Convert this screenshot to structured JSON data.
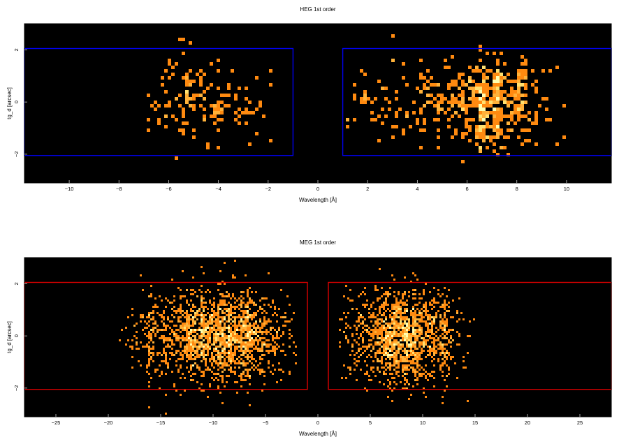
{
  "chart_data": [
    {
      "type": "heatmap",
      "title": "HEG 1st order",
      "xlabel": "Wavelength [Å]",
      "ylabel": "tg_d [arcsec]",
      "xlim": [
        -11.8,
        11.8
      ],
      "ylim": [
        -3.1,
        3.0
      ],
      "xticks": [
        -10,
        -8,
        -6,
        -4,
        -2,
        0,
        2,
        4,
        6,
        8,
        10
      ],
      "yticks": [
        -2,
        0,
        2
      ],
      "box_color": "#0000ee",
      "regions": [
        {
          "x": [
            -11.8,
            -1.0
          ],
          "y": [
            -2.05,
            2.05
          ]
        },
        {
          "x": [
            1.0,
            11.8
          ],
          "y": [
            -2.05,
            2.05
          ]
        }
      ],
      "density": [
        {
          "x_center": -4.3,
          "x_spread": 1.45,
          "x_min": -7.0,
          "x_max": -1.8,
          "y_spread": 0.85,
          "weight": 0.25
        },
        {
          "x_center": 6.8,
          "x_spread": 1.2,
          "x_min": 0.5,
          "x_max": 10.5,
          "y_spread": 0.85,
          "weight": 0.55
        },
        {
          "x_center": 4.0,
          "x_spread": 1.6,
          "x_min": 0.5,
          "x_max": 10.5,
          "y_spread": 0.85,
          "weight": 0.2
        }
      ],
      "bright_lines": [
        -6.1,
        -5.2,
        -4.0,
        6.6,
        7.2,
        8.2
      ],
      "grid": false
    },
    {
      "type": "heatmap",
      "title": "MEG 1st order",
      "xlabel": "Wavelength [Å]",
      "ylabel": "tg_d [arcsec]",
      "xlim": [
        -28,
        28
      ],
      "ylim": [
        -3.1,
        3.0
      ],
      "xticks": [
        -25,
        -20,
        -15,
        -10,
        -5,
        0,
        5,
        10,
        15,
        20,
        25
      ],
      "yticks": [
        -2,
        0,
        2
      ],
      "box_color": "#dd0000",
      "regions": [
        {
          "x": [
            -28,
            -1.0
          ],
          "y": [
            -2.05,
            2.05
          ]
        },
        {
          "x": [
            1.0,
            28
          ],
          "y": [
            -2.05,
            2.05
          ]
        }
      ],
      "density": [
        {
          "x_center": -9.5,
          "x_spread": 3.6,
          "x_min": -19,
          "x_max": -2,
          "y_spread": 0.85,
          "weight": 0.55
        },
        {
          "x_center": 8.0,
          "x_spread": 2.6,
          "x_min": 2,
          "x_max": 15,
          "y_spread": 0.85,
          "weight": 0.45
        }
      ],
      "bright_lines": [
        -16.0,
        -12.1,
        -11.0,
        -9.2,
        -8.4,
        -7.1,
        -6.6,
        6.6,
        7.2,
        8.4,
        9.2,
        12.1
      ],
      "grid": false
    }
  ]
}
